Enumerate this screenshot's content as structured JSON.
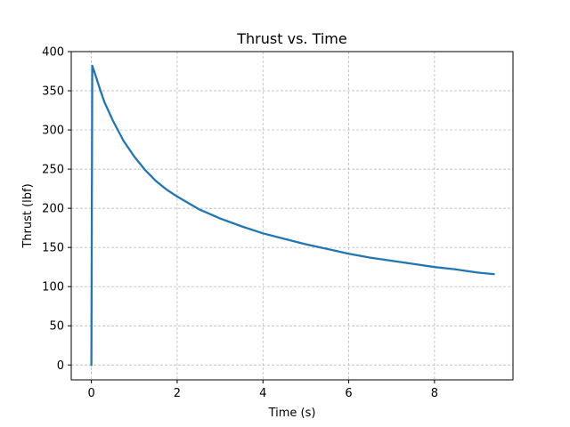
{
  "chart_data": {
    "type": "line",
    "title": "Thrust vs. Time",
    "xlabel": "Time (s)",
    "ylabel": "Thrust (lbf)",
    "xlim": [
      -0.47,
      9.83
    ],
    "ylim": [
      -19,
      400
    ],
    "xticks": [
      0,
      2,
      4,
      6,
      8
    ],
    "yticks": [
      0,
      50,
      100,
      150,
      200,
      250,
      300,
      350,
      400
    ],
    "grid": true,
    "grid_style": "dashed",
    "line_color": "#1f77b4",
    "series": [
      {
        "x": [
          0.0,
          0.02,
          0.1,
          0.2,
          0.3,
          0.5,
          0.75,
          1.0,
          1.25,
          1.5,
          1.75,
          2.0,
          2.5,
          3.0,
          3.5,
          4.0,
          4.5,
          5.0,
          5.5,
          6.0,
          6.5,
          7.0,
          7.5,
          8.0,
          8.5,
          9.0,
          9.38
        ],
        "y": [
          0,
          382,
          369,
          352,
          336,
          312,
          286,
          266,
          249,
          235,
          224,
          215,
          199,
          187,
          177,
          168,
          161,
          154,
          148,
          142,
          137,
          133,
          129,
          125,
          122,
          118,
          116
        ]
      }
    ]
  }
}
